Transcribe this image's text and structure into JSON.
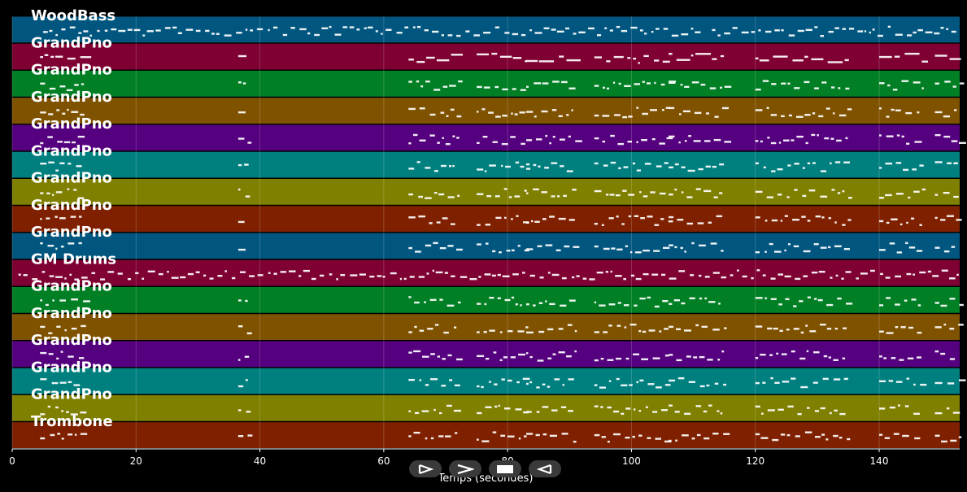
{
  "chart_data": {
    "type": "piano-roll",
    "xlabel": "Temps (secondes)",
    "xlim": [
      0,
      153
    ],
    "xticks": [
      0,
      20,
      40,
      60,
      80,
      100,
      120,
      140
    ],
    "grid": true,
    "tracks": [
      {
        "name": "WoodBass",
        "color": "#00567f"
      },
      {
        "name": "GrandPno",
        "color": "#7f0032"
      },
      {
        "name": "GrandPno",
        "color": "#007f24"
      },
      {
        "name": "GrandPno",
        "color": "#7f5200"
      },
      {
        "name": "GrandPno",
        "color": "#55007f"
      },
      {
        "name": "GrandPno",
        "color": "#007f7f"
      },
      {
        "name": "GrandPno",
        "color": "#7f7f00"
      },
      {
        "name": "GrandPno",
        "color": "#7f2100"
      },
      {
        "name": "GrandPno",
        "color": "#00567f"
      },
      {
        "name": "GM Drums",
        "color": "#7f0032"
      },
      {
        "name": "GrandPno",
        "color": "#007f24"
      },
      {
        "name": "GrandPno",
        "color": "#7f5200"
      },
      {
        "name": "GrandPno",
        "color": "#55007f"
      },
      {
        "name": "GrandPno",
        "color": "#007f7f"
      },
      {
        "name": "GrandPno",
        "color": "#7f7f00"
      },
      {
        "name": "Trombone",
        "color": "#7f2100"
      }
    ]
  },
  "controls": [
    {
      "name": "play-icon"
    },
    {
      "name": "forward-icon"
    },
    {
      "name": "stop-icon"
    },
    {
      "name": "rewind-icon"
    }
  ]
}
